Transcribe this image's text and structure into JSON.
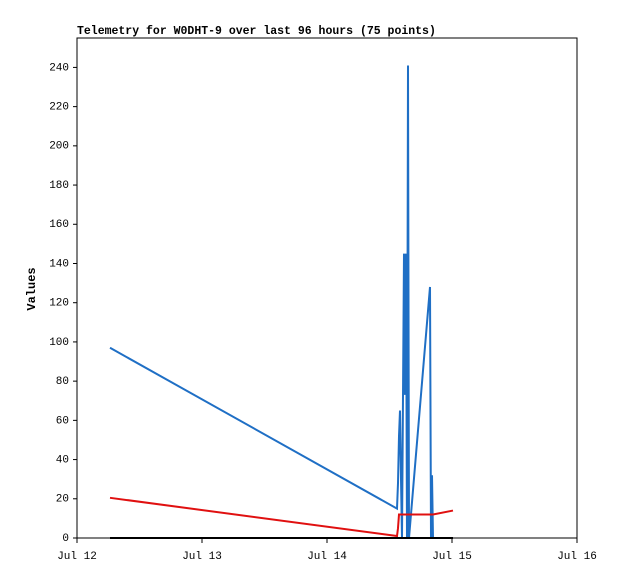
{
  "chart_data": {
    "type": "line",
    "title": "Telemetry for W0DHT-9 over last 96 hours (75 points)",
    "y_label": "Values",
    "x": [
      12.264,
      14.56,
      14.568,
      14.576,
      14.584,
      14.592,
      14.6,
      14.616,
      14.624,
      14.632,
      14.64,
      14.648,
      14.656,
      14.824,
      14.832,
      14.84,
      14.848,
      15.008
    ],
    "series": [
      {
        "color": "#1f6fc5",
        "values": [
          97,
          15,
          28,
          52,
          65,
          30,
          0,
          145,
          73,
          145,
          0,
          241,
          0,
          128,
          0,
          32,
          0,
          0
        ]
      },
      {
        "color": "#e01010",
        "values": [
          20.5,
          1,
          5,
          12,
          12,
          12,
          12,
          12,
          12,
          12,
          12,
          12,
          12,
          12,
          12,
          12,
          12,
          14
        ]
      },
      {
        "color": "#000000",
        "values": [
          0,
          0,
          0,
          0,
          0,
          0,
          0,
          0,
          0,
          0,
          0,
          0,
          0,
          0,
          0,
          0,
          0,
          0
        ]
      }
    ],
    "xlim": [
      12,
      16
    ],
    "xticks": [
      {
        "value": 12,
        "label": "Jul 12"
      },
      {
        "value": 13,
        "label": "Jul 13"
      },
      {
        "value": 14,
        "label": "Jul 14"
      },
      {
        "value": 15,
        "label": "Jul 15"
      },
      {
        "value": 16,
        "label": "Jul 16"
      }
    ],
    "ylim": [
      0,
      255
    ],
    "yticks": [
      0,
      20,
      40,
      60,
      80,
      100,
      120,
      140,
      160,
      180,
      200,
      220,
      240
    ],
    "grid": false
  }
}
